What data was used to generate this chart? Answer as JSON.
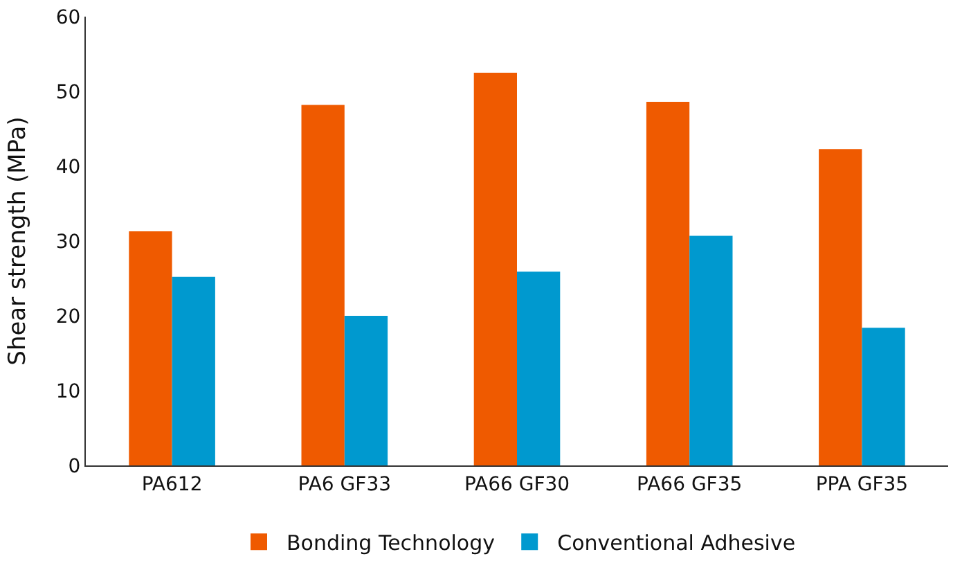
{
  "chart_data": {
    "type": "bar",
    "ylabel": "Shear strength (MPa)",
    "categories": [
      "PA612",
      "PA6 GF33",
      "PA66 GF30",
      "PA66 GF35",
      "PPA GF35"
    ],
    "series": [
      {
        "name": "Bonding Technology",
        "color": "#ef5a00",
        "values": [
          31.3,
          48.2,
          52.5,
          48.6,
          42.3
        ]
      },
      {
        "name": "Conventional Adhesive",
        "color": "#0099cf",
        "values": [
          25.2,
          20.0,
          25.9,
          30.7,
          18.4
        ]
      }
    ],
    "ylim": [
      0,
      60
    ],
    "yticks": [
      0,
      10,
      20,
      30,
      40,
      50,
      60
    ],
    "grid": false,
    "legend": "bottom"
  }
}
